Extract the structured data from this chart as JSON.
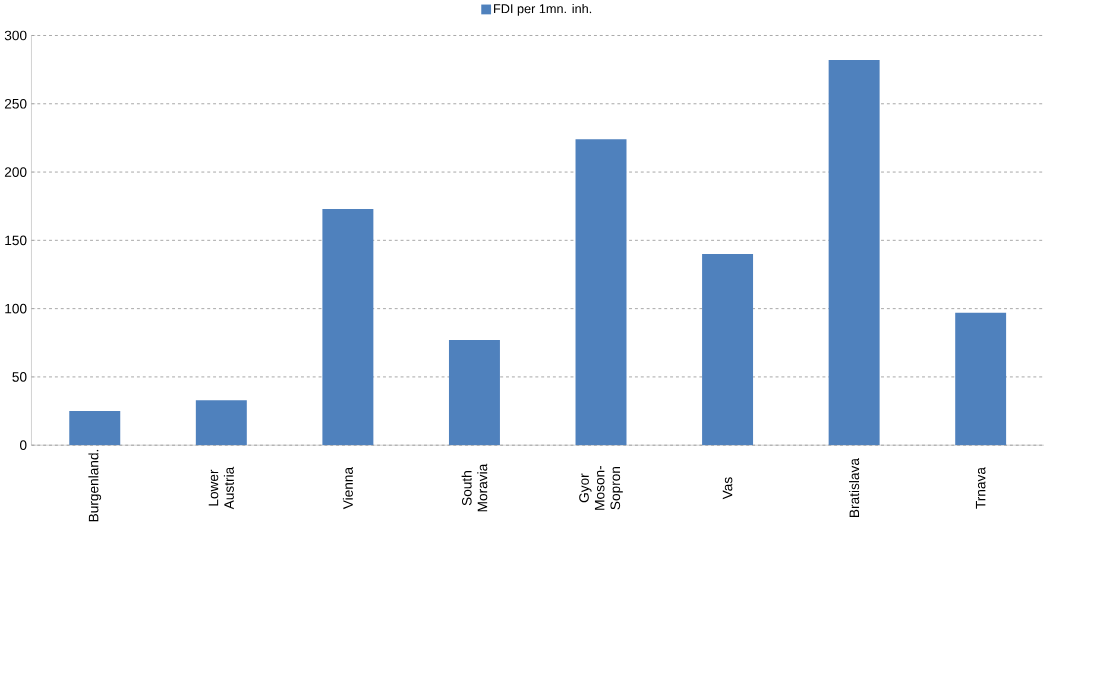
{
  "chart_data": {
    "type": "bar",
    "categories": [
      "Burgenland.",
      "Lower Austria",
      "Vienna",
      "South Moravia",
      "Gyor Moson-Sopron",
      "Vas",
      "Bratislava",
      "Trnava"
    ],
    "series": [
      {
        "name": "FDI per 1mn. inh.",
        "color": "#4f81bd",
        "values": [
          25,
          33,
          173,
          77,
          224,
          140,
          282,
          97
        ]
      }
    ],
    "ylim": [
      0,
      300
    ],
    "yticks": [
      0,
      50,
      100,
      150,
      200,
      250,
      300
    ],
    "grid": "y",
    "legend": "top"
  }
}
